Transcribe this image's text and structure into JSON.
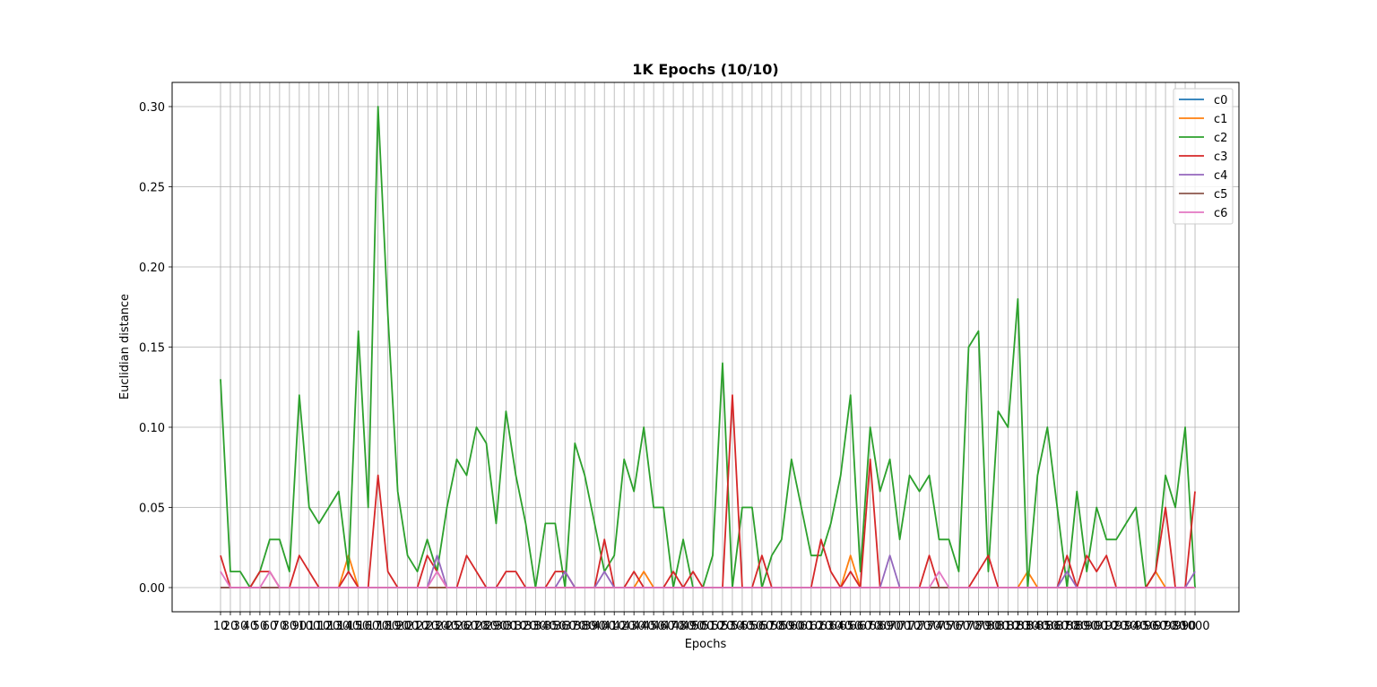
{
  "chart_data": {
    "type": "line",
    "title": "1K Epochs (10/10)",
    "xlabel": "Epochs",
    "ylabel": "Euclidian distance",
    "x": [
      10,
      20,
      30,
      40,
      50,
      60,
      70,
      80,
      90,
      100,
      110,
      120,
      130,
      140,
      150,
      160,
      170,
      180,
      190,
      200,
      210,
      220,
      230,
      240,
      250,
      260,
      270,
      280,
      290,
      300,
      310,
      320,
      330,
      340,
      350,
      360,
      370,
      380,
      390,
      400,
      410,
      420,
      430,
      440,
      450,
      460,
      470,
      480,
      490,
      500,
      510,
      520,
      530,
      540,
      550,
      560,
      570,
      580,
      590,
      600,
      610,
      620,
      630,
      640,
      650,
      660,
      670,
      680,
      690,
      700,
      710,
      720,
      730,
      740,
      750,
      760,
      770,
      780,
      790,
      800,
      810,
      820,
      830,
      840,
      850,
      860,
      870,
      880,
      890,
      900,
      910,
      920,
      930,
      940,
      950,
      960,
      970,
      980,
      990,
      1000
    ],
    "ylim": [
      -0.015,
      0.315
    ],
    "yticks": [
      "0.00",
      "0.05",
      "0.10",
      "0.15",
      "0.20",
      "0.25",
      "0.30"
    ],
    "grid": true,
    "legend_position": "top-right",
    "series": [
      {
        "name": "c0",
        "color": "#1f77b4",
        "values": [
          0,
          0,
          0,
          0,
          0,
          0,
          0,
          0,
          0,
          0,
          0,
          0,
          0,
          0,
          0,
          0,
          0,
          0,
          0,
          0,
          0,
          0,
          0,
          0,
          0,
          0,
          0,
          0,
          0,
          0,
          0,
          0,
          0,
          0,
          0,
          0,
          0,
          0,
          0,
          0,
          0,
          0,
          0,
          0,
          0,
          0,
          0,
          0,
          0,
          0,
          0,
          0,
          0,
          0,
          0,
          0,
          0,
          0,
          0,
          0,
          0,
          0,
          0,
          0,
          0,
          0,
          0,
          0,
          0,
          0,
          0,
          0,
          0,
          0,
          0,
          0,
          0,
          0,
          0,
          0,
          0,
          0,
          0,
          0,
          0,
          0,
          0,
          0,
          0,
          0,
          0,
          0,
          0,
          0,
          0,
          0,
          0,
          0,
          0,
          0
        ]
      },
      {
        "name": "c1",
        "color": "#ff7f0e",
        "values": [
          0,
          0,
          0,
          0,
          0,
          0,
          0,
          0,
          0,
          0,
          0,
          0,
          0,
          0.02,
          0,
          0,
          0,
          0,
          0,
          0,
          0,
          0,
          0,
          0,
          0,
          0,
          0,
          0,
          0,
          0,
          0,
          0,
          0,
          0,
          0,
          0,
          0,
          0,
          0,
          0,
          0,
          0,
          0,
          0.01,
          0,
          0,
          0,
          0,
          0,
          0,
          0,
          0,
          0,
          0,
          0,
          0,
          0,
          0,
          0,
          0,
          0,
          0,
          0,
          0,
          0.02,
          0,
          0,
          0,
          0,
          0,
          0,
          0,
          0,
          0,
          0,
          0,
          0,
          0,
          0,
          0,
          0,
          0,
          0.01,
          0,
          0,
          0,
          0,
          0,
          0,
          0,
          0,
          0,
          0,
          0,
          0,
          0.01,
          0,
          0,
          0,
          0
        ]
      },
      {
        "name": "c2",
        "color": "#2ca02c",
        "values": [
          0.13,
          0.01,
          0.01,
          0,
          0.01,
          0.03,
          0.03,
          0.01,
          0.12,
          0.05,
          0.04,
          0.05,
          0.06,
          0.01,
          0.16,
          0.05,
          0.3,
          0.17,
          0.06,
          0.02,
          0.01,
          0.03,
          0.01,
          0.05,
          0.08,
          0.07,
          0.1,
          0.09,
          0.04,
          0.11,
          0.07,
          0.04,
          0,
          0.04,
          0.04,
          0,
          0.09,
          0.07,
          0.04,
          0.01,
          0.02,
          0.08,
          0.06,
          0.1,
          0.05,
          0.05,
          0,
          0.03,
          0,
          0,
          0.02,
          0.14,
          0,
          0.05,
          0.05,
          0,
          0.02,
          0.03,
          0.08,
          0.05,
          0.02,
          0.02,
          0.04,
          0.07,
          0.12,
          0.01,
          0.1,
          0.06,
          0.08,
          0.03,
          0.07,
          0.06,
          0.07,
          0.03,
          0.03,
          0.01,
          0.15,
          0.16,
          0.01,
          0.11,
          0.1,
          0.18,
          0,
          0.07,
          0.1,
          0.05,
          0,
          0.06,
          0.01,
          0.05,
          0.03,
          0.03,
          0.04,
          0.05,
          0,
          0.01,
          0.07,
          0.05,
          0.1,
          0
        ]
      },
      {
        "name": "c3",
        "color": "#d62728",
        "values": [
          0.02,
          0,
          0,
          0,
          0.01,
          0.01,
          0,
          0,
          0.02,
          0.01,
          0,
          0,
          0,
          0.01,
          0,
          0,
          0.07,
          0.01,
          0,
          0,
          0,
          0.02,
          0.01,
          0,
          0,
          0.02,
          0.01,
          0,
          0,
          0.01,
          0.01,
          0,
          0,
          0,
          0.01,
          0.01,
          0,
          0,
          0,
          0.03,
          0,
          0,
          0.01,
          0,
          0,
          0,
          0.01,
          0,
          0.01,
          0,
          0,
          0,
          0.12,
          0,
          0,
          0.02,
          0,
          0,
          0,
          0,
          0,
          0.03,
          0.01,
          0,
          0.01,
          0,
          0.08,
          0,
          0,
          0,
          0,
          0,
          0.02,
          0,
          0,
          0,
          0,
          0.01,
          0.02,
          0,
          0,
          0,
          0,
          0,
          0,
          0,
          0.02,
          0,
          0.02,
          0.01,
          0.02,
          0,
          0,
          0,
          0,
          0.01,
          0.05,
          0,
          0,
          0.06
        ]
      },
      {
        "name": "c4",
        "color": "#9467bd",
        "values": [
          0,
          0,
          0,
          0,
          0,
          0,
          0,
          0,
          0,
          0,
          0,
          0,
          0,
          0,
          0,
          0,
          0,
          0,
          0,
          0,
          0,
          0,
          0.02,
          0,
          0,
          0,
          0,
          0,
          0,
          0,
          0,
          0,
          0,
          0,
          0,
          0.01,
          0,
          0,
          0,
          0.01,
          0,
          0,
          0,
          0,
          0,
          0,
          0,
          0,
          0,
          0,
          0,
          0,
          0,
          0,
          0,
          0,
          0,
          0,
          0,
          0,
          0,
          0,
          0,
          0,
          0,
          0,
          0,
          0,
          0.02,
          0,
          0,
          0,
          0,
          0,
          0,
          0,
          0,
          0,
          0,
          0,
          0,
          0,
          0,
          0,
          0,
          0,
          0.01,
          0,
          0,
          0,
          0,
          0,
          0,
          0,
          0,
          0,
          0,
          0,
          0,
          0.01
        ]
      },
      {
        "name": "c5",
        "color": "#8c564b",
        "values": [
          0,
          0,
          0,
          0,
          0,
          0,
          0,
          0,
          0,
          0,
          0,
          0,
          0,
          0,
          0,
          0,
          0,
          0,
          0,
          0,
          0,
          0,
          0,
          0,
          0,
          0,
          0,
          0,
          0,
          0,
          0,
          0,
          0,
          0,
          0,
          0,
          0,
          0,
          0,
          0,
          0,
          0,
          0,
          0,
          0,
          0,
          0,
          0,
          0,
          0,
          0,
          0,
          0,
          0,
          0,
          0,
          0,
          0,
          0,
          0,
          0,
          0,
          0,
          0,
          0,
          0,
          0,
          0,
          0,
          0,
          0,
          0,
          0,
          0,
          0,
          0,
          0,
          0,
          0,
          0,
          0,
          0,
          0,
          0,
          0,
          0,
          0,
          0,
          0,
          0,
          0,
          0,
          0,
          0,
          0,
          0,
          0,
          0,
          0,
          0
        ]
      },
      {
        "name": "c6",
        "color": "#e377c2",
        "values": [
          0.01,
          0,
          0,
          0,
          0,
          0.01,
          0,
          0,
          0,
          0,
          0,
          0,
          0,
          0,
          0,
          0,
          0,
          0,
          0,
          0,
          0,
          0,
          0.01,
          0,
          0,
          0,
          0,
          0,
          0,
          0,
          0,
          0,
          0,
          0,
          0,
          0,
          0,
          0,
          0,
          0,
          0,
          0,
          0,
          0,
          0,
          0,
          0,
          0,
          0,
          0,
          0,
          0,
          0,
          0,
          0,
          0,
          0,
          0,
          0,
          0,
          0,
          0,
          0,
          0,
          0,
          0,
          0,
          0,
          0,
          0,
          0,
          0,
          0,
          0.01,
          0,
          0,
          0,
          0,
          0,
          0,
          0,
          0,
          0,
          0,
          0,
          0,
          0,
          0,
          0,
          0,
          0,
          0,
          0,
          0,
          0,
          0,
          0,
          0,
          0,
          0
        ]
      }
    ]
  }
}
